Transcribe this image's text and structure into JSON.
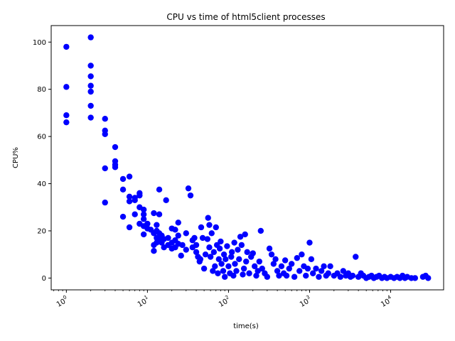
{
  "chart_data": {
    "type": "scatter",
    "title": "CPU vs time of html5client processes",
    "xlabel": "time(s)",
    "ylabel": "CPU%",
    "xscale": "log",
    "xlim": [
      0.65,
      45000
    ],
    "ylim": [
      -5,
      107
    ],
    "x_ticks": [
      {
        "value": 1,
        "base": "10",
        "exp": "0"
      },
      {
        "value": 10,
        "base": "10",
        "exp": "1"
      },
      {
        "value": 100,
        "base": "10",
        "exp": "2"
      },
      {
        "value": 1000,
        "base": "10",
        "exp": "3"
      },
      {
        "value": 10000,
        "base": "10",
        "exp": "4"
      }
    ],
    "y_ticks": [
      {
        "value": 0,
        "label": "0"
      },
      {
        "value": 20,
        "label": "20"
      },
      {
        "value": 40,
        "label": "40"
      },
      {
        "value": 60,
        "label": "60"
      },
      {
        "value": 80,
        "label": "80"
      },
      {
        "value": 100,
        "label": "100"
      }
    ],
    "grid": false,
    "marker_color": "#0000ff",
    "points": [
      [
        1,
        98
      ],
      [
        1,
        81
      ],
      [
        1,
        69
      ],
      [
        1,
        66
      ],
      [
        2,
        102
      ],
      [
        2,
        90
      ],
      [
        2,
        85.5
      ],
      [
        2,
        81.5
      ],
      [
        2,
        79
      ],
      [
        2,
        73
      ],
      [
        2,
        68
      ],
      [
        3,
        67.5
      ],
      [
        3,
        62.5
      ],
      [
        3,
        61
      ],
      [
        3,
        46.5
      ],
      [
        3,
        32
      ],
      [
        4,
        55.5
      ],
      [
        4,
        49.5
      ],
      [
        4,
        48
      ],
      [
        4,
        47
      ],
      [
        5,
        42
      ],
      [
        5,
        37.5
      ],
      [
        5,
        26
      ],
      [
        6,
        43
      ],
      [
        6,
        34.5
      ],
      [
        6,
        32.5
      ],
      [
        6,
        21.5
      ],
      [
        7,
        34
      ],
      [
        7,
        33
      ],
      [
        7,
        27
      ],
      [
        8,
        36
      ],
      [
        8,
        35
      ],
      [
        8,
        30
      ],
      [
        8,
        23
      ],
      [
        9,
        29
      ],
      [
        9,
        27
      ],
      [
        9,
        25
      ],
      [
        9,
        22
      ],
      [
        9,
        18.5
      ],
      [
        10,
        23
      ],
      [
        10,
        21
      ],
      [
        11,
        20.5
      ],
      [
        12,
        27.5
      ],
      [
        12,
        19
      ],
      [
        12,
        14
      ],
      [
        12,
        11.5
      ],
      [
        13,
        22.5
      ],
      [
        13,
        20
      ],
      [
        13,
        17
      ],
      [
        13,
        15
      ],
      [
        14,
        37.5
      ],
      [
        14,
        27
      ],
      [
        14,
        19
      ],
      [
        14,
        16
      ],
      [
        15,
        15
      ],
      [
        15,
        18
      ],
      [
        16,
        16.5
      ],
      [
        16,
        13
      ],
      [
        17,
        33
      ],
      [
        18,
        17
      ],
      [
        18,
        14
      ],
      [
        20,
        21
      ],
      [
        20,
        15
      ],
      [
        20,
        12.5
      ],
      [
        22,
        20.5
      ],
      [
        22,
        16
      ],
      [
        22,
        13
      ],
      [
        24,
        23.5
      ],
      [
        24,
        18
      ],
      [
        24,
        14.5
      ],
      [
        26,
        9.5
      ],
      [
        27,
        14
      ],
      [
        30,
        19
      ],
      [
        30,
        12
      ],
      [
        32,
        38
      ],
      [
        34,
        35
      ],
      [
        36,
        16
      ],
      [
        36,
        13
      ],
      [
        38,
        17
      ],
      [
        40,
        11
      ],
      [
        40,
        14
      ],
      [
        42,
        9
      ],
      [
        44,
        7
      ],
      [
        45,
        8
      ],
      [
        46,
        21.5
      ],
      [
        48,
        17
      ],
      [
        50,
        4
      ],
      [
        52,
        10
      ],
      [
        55,
        16.5
      ],
      [
        56,
        25.5
      ],
      [
        58,
        22.5
      ],
      [
        58,
        13
      ],
      [
        60,
        9
      ],
      [
        62,
        19
      ],
      [
        64,
        3
      ],
      [
        66,
        11
      ],
      [
        68,
        5
      ],
      [
        70,
        21.5
      ],
      [
        72,
        14
      ],
      [
        74,
        2
      ],
      [
        76,
        8
      ],
      [
        78,
        12.5
      ],
      [
        80,
        15.5
      ],
      [
        82,
        6
      ],
      [
        86,
        3
      ],
      [
        88,
        10
      ],
      [
        90,
        0.5
      ],
      [
        92,
        8
      ],
      [
        96,
        13.5
      ],
      [
        100,
        5
      ],
      [
        104,
        2
      ],
      [
        108,
        9
      ],
      [
        110,
        11
      ],
      [
        115,
        1
      ],
      [
        118,
        15
      ],
      [
        120,
        6
      ],
      [
        125,
        3
      ],
      [
        130,
        12
      ],
      [
        135,
        8
      ],
      [
        140,
        17.5
      ],
      [
        145,
        14
      ],
      [
        150,
        1.5
      ],
      [
        155,
        4
      ],
      [
        160,
        18.5
      ],
      [
        165,
        7
      ],
      [
        170,
        11
      ],
      [
        180,
        2
      ],
      [
        190,
        9
      ],
      [
        200,
        10.5
      ],
      [
        210,
        5
      ],
      [
        220,
        1
      ],
      [
        230,
        3
      ],
      [
        240,
        7
      ],
      [
        250,
        20
      ],
      [
        260,
        4
      ],
      [
        280,
        2
      ],
      [
        300,
        0.5
      ],
      [
        320,
        12.5
      ],
      [
        340,
        10
      ],
      [
        360,
        6
      ],
      [
        380,
        8
      ],
      [
        400,
        3
      ],
      [
        420,
        1
      ],
      [
        450,
        5
      ],
      [
        480,
        2
      ],
      [
        500,
        7.5
      ],
      [
        520,
        1
      ],
      [
        560,
        4
      ],
      [
        600,
        6
      ],
      [
        650,
        0.5
      ],
      [
        700,
        8.5
      ],
      [
        750,
        3
      ],
      [
        800,
        10
      ],
      [
        850,
        5
      ],
      [
        900,
        1
      ],
      [
        950,
        4
      ],
      [
        1000,
        15
      ],
      [
        1050,
        8
      ],
      [
        1100,
        2
      ],
      [
        1200,
        4
      ],
      [
        1300,
        0.5
      ],
      [
        1400,
        3
      ],
      [
        1500,
        5
      ],
      [
        1600,
        1
      ],
      [
        1700,
        2
      ],
      [
        1800,
        5
      ],
      [
        2000,
        1
      ],
      [
        2200,
        2
      ],
      [
        2400,
        0.5
      ],
      [
        2600,
        3
      ],
      [
        2800,
        1
      ],
      [
        3000,
        2
      ],
      [
        3200,
        0.5
      ],
      [
        3400,
        1
      ],
      [
        3700,
        9
      ],
      [
        4000,
        0.5
      ],
      [
        4300,
        2
      ],
      [
        4600,
        1
      ],
      [
        5000,
        0
      ],
      [
        5400,
        0.5
      ],
      [
        5800,
        1
      ],
      [
        6200,
        0
      ],
      [
        6700,
        0.5
      ],
      [
        7200,
        1
      ],
      [
        7800,
        0
      ],
      [
        8400,
        0.5
      ],
      [
        9000,
        0
      ],
      [
        10000,
        0.5
      ],
      [
        11000,
        0
      ],
      [
        12000,
        0.5
      ],
      [
        13000,
        0
      ],
      [
        14000,
        1
      ],
      [
        15000,
        0
      ],
      [
        16000,
        0.5
      ],
      [
        18000,
        0
      ],
      [
        20000,
        0
      ],
      [
        25000,
        0.5
      ],
      [
        27000,
        1
      ],
      [
        29000,
        0
      ]
    ]
  }
}
